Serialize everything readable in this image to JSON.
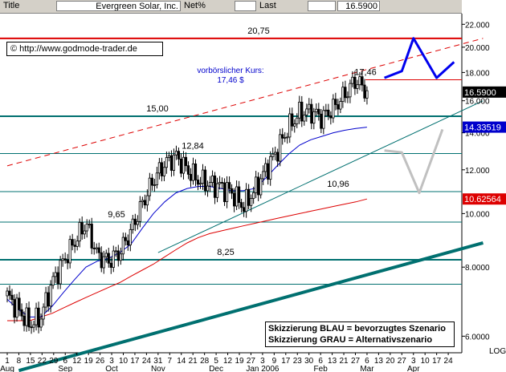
{
  "header": {
    "title_label": "Title",
    "instrument": "Evergreen Solar, Inc.",
    "mode": "Net%",
    "last_label": "Last",
    "last_value": "16.5900"
  },
  "source": "© http://www.godmode-trader.de",
  "colors": {
    "background": "#ffffff",
    "price": "#000000",
    "ma_short": "#0000cc",
    "ma_long": "#dd0000",
    "support": "#007070",
    "resistance": "#dd0000",
    "scenario_blue": "#0000ee",
    "scenario_grey": "#c0c0c0"
  },
  "chart_data": {
    "type": "candlestick",
    "yscale": "log",
    "ylim": [
      5.6,
      23
    ],
    "y_ticks": [
      6.0,
      8.0,
      10.0,
      12.0,
      14.0,
      16.0,
      18.0,
      20.0,
      22.0
    ],
    "y_tick_labels": [
      "6.0000",
      "8.0000",
      "10.000",
      "12.000",
      "14.000",
      "16.000",
      "18.000",
      "20.000",
      "22.000"
    ],
    "log_label": "LOG",
    "x_days": [
      "1",
      "8",
      "15",
      "22",
      "29",
      "6",
      "12",
      "19",
      "26",
      "3",
      "10",
      "17",
      "24",
      "31",
      "7",
      "14",
      "21",
      "28",
      "5",
      "12",
      "19",
      "27",
      "3",
      "9",
      "17",
      "23",
      "30",
      "6",
      "13",
      "21",
      "27",
      "6",
      "13",
      "20",
      "27",
      "3",
      "10",
      "17",
      "24"
    ],
    "x_months": [
      {
        "label": "Aug",
        "index": 0
      },
      {
        "label": "Sep",
        "index": 5
      },
      {
        "label": "Oct",
        "index": 9
      },
      {
        "label": "Nov",
        "index": 13
      },
      {
        "label": "Dec",
        "index": 18
      },
      {
        "label": "Jan 2006",
        "index": 22
      },
      {
        "label": "Feb",
        "index": 27
      },
      {
        "label": "Mar",
        "index": 31
      },
      {
        "label": "Apr",
        "index": 35
      }
    ],
    "price_close": [
      7.1,
      6.7,
      6.3,
      6.5,
      7.5,
      8.2,
      8.9,
      9.6,
      8.4,
      8.2,
      8.5,
      9.3,
      10.4,
      11.5,
      12.3,
      12.7,
      12.0,
      11.5,
      11.3,
      11.2,
      10.9,
      10.3,
      11.0,
      12.0,
      13.0,
      14.3,
      15.2,
      15.3,
      14.9,
      15.5,
      16.4,
      17.46,
      16.59
    ],
    "ma_short": [
      7.0,
      6.7,
      6.5,
      6.5,
      6.8,
      7.2,
      7.6,
      8.0,
      8.2,
      8.3,
      8.5,
      8.8,
      9.4,
      10.0,
      10.5,
      10.9,
      11.1,
      11.2,
      11.2,
      11.1,
      11.0,
      11.0,
      11.1,
      11.6,
      12.2,
      12.8,
      13.3,
      13.6,
      13.8,
      14.0,
      14.15,
      14.25,
      14.335
    ],
    "ma_long": [
      6.4,
      6.4,
      6.4,
      6.5,
      6.6,
      6.75,
      6.9,
      7.05,
      7.2,
      7.35,
      7.5,
      7.7,
      7.9,
      8.1,
      8.35,
      8.6,
      8.85,
      9.05,
      9.2,
      9.3,
      9.4,
      9.5,
      9.6,
      9.7,
      9.8,
      9.9,
      10.0,
      10.1,
      10.2,
      10.3,
      10.4,
      10.5,
      10.626
    ],
    "horizontal_levels": [
      {
        "value": 20.75,
        "label": "20,75",
        "kind": "resistance"
      },
      {
        "value": 15.0,
        "label": "15,00",
        "kind": "support"
      },
      {
        "value": 12.84,
        "label": "12,84",
        "kind": "support"
      },
      {
        "value": 10.96,
        "label": "10,96",
        "kind": "support"
      },
      {
        "value": 9.65,
        "label": "9,65",
        "kind": "support"
      },
      {
        "value": 8.25,
        "label": "8,25",
        "kind": "support"
      },
      {
        "value": 7.45,
        "label": "",
        "kind": "support"
      },
      {
        "value": 17.46,
        "label": "17,46",
        "kind": "marker"
      }
    ],
    "trendlines": [
      {
        "name": "red-dashed-resistance",
        "from": [
          0,
          12.2
        ],
        "to": [
          41,
          20.75
        ]
      },
      {
        "name": "thin-teal-uptrend",
        "from": [
          13,
          8.5
        ],
        "to": [
          41,
          16.0
        ]
      },
      {
        "name": "thick-teal-long-trend",
        "from": [
          1,
          5.2
        ],
        "to": [
          41,
          8.85
        ]
      }
    ],
    "annotations": {
      "pre_market_label": "vorbörslicher Kurs:",
      "pre_market_value": "17,46 $",
      "legend_blue": "Skizzierung BLAU = bevorzugtes Szenario",
      "legend_grey": "Skizzierung GRAU = Alternativszenario"
    },
    "price_flags": [
      {
        "value": 16.59,
        "label": "16.5900",
        "bg": "#000000",
        "fg": "#ffffff"
      },
      {
        "value": 14.33519,
        "label": "14.33519",
        "bg": "#0000cc",
        "fg": "#ffffff"
      },
      {
        "value": 10.62564,
        "label": "10.62564",
        "bg": "#dd0000",
        "fg": "#ffffff"
      }
    ],
    "scenario_blue": [
      [
        32.5,
        17.6
      ],
      [
        34,
        18.1
      ],
      [
        35,
        20.75
      ],
      [
        37,
        17.6
      ],
      [
        38.5,
        18.8
      ]
    ],
    "scenario_grey": [
      [
        32.5,
        13.0
      ],
      [
        34,
        12.9
      ],
      [
        35.5,
        10.9
      ],
      [
        37.5,
        14.2
      ]
    ]
  }
}
